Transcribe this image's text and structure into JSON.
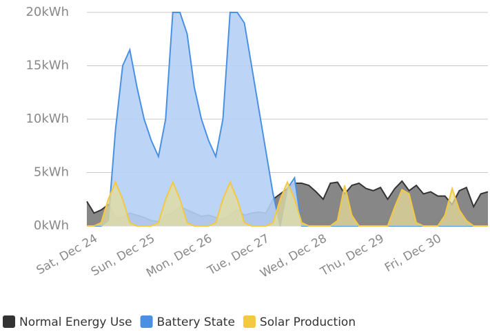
{
  "chart_data": {
    "type": "area",
    "categories": [
      "Sat, Dec 24",
      null,
      null,
      null,
      null,
      null,
      null,
      null,
      "Sun, Dec 25",
      null,
      null,
      null,
      null,
      null,
      null,
      null,
      "Mon, Dec 26",
      null,
      null,
      null,
      null,
      null,
      null,
      null,
      "Tue, Dec 27",
      null,
      null,
      null,
      null,
      null,
      null,
      null,
      "Wed, Dec 28",
      null,
      null,
      null,
      null,
      null,
      null,
      null,
      "Thu, Dec 29",
      null,
      null,
      null,
      null,
      null,
      null,
      null,
      "Fri, Dec 30",
      null,
      null,
      null,
      null,
      null,
      null,
      null,
      null
    ],
    "series": [
      {
        "name": "Normal Energy Use",
        "color": "#333333",
        "fill": "#7a7a7a",
        "values": [
          2.3,
          1.2,
          1.5,
          2,
          0.8,
          0.8,
          1.2,
          1,
          0.8,
          0.5,
          0.4,
          1,
          1.2,
          1.8,
          1.5,
          1.2,
          0.9,
          1,
          0.8,
          0.6,
          1,
          1.5,
          1,
          1.2,
          1.3,
          1.2,
          2.5,
          3,
          3.5,
          4,
          4,
          3.8,
          3.2,
          2.5,
          4,
          4.1,
          3,
          3.8,
          4,
          3.5,
          3.3,
          3.6,
          2.5,
          3.5,
          4.2,
          3.3,
          3.8,
          3,
          3.2,
          2.8,
          2.8,
          2,
          3.3,
          3.6,
          1.8,
          3,
          3.2
        ]
      },
      {
        "name": "Battery State",
        "color": "#4a90e2",
        "fill": "#b5d0f5",
        "values": [
          0,
          0,
          0,
          0.5,
          9,
          15,
          16.5,
          13,
          10,
          8,
          6.5,
          10,
          20,
          20,
          18,
          13,
          10,
          8,
          6.5,
          10,
          20,
          20,
          19,
          15,
          11,
          7,
          3,
          0,
          3.5,
          4.5,
          0,
          0,
          0,
          0,
          0,
          0,
          0,
          0,
          0,
          0,
          0,
          0,
          0,
          0,
          0,
          0,
          0,
          0,
          0,
          0,
          0,
          0,
          0,
          0,
          0,
          0,
          0
        ]
      },
      {
        "name": "Solar Production",
        "color": "#f5c842",
        "fill": "#e6dc9a",
        "values": [
          0,
          0,
          0.3,
          2.5,
          4.1,
          2.5,
          0.3,
          0,
          0,
          0,
          0.3,
          2.5,
          4.1,
          2.5,
          0.3,
          0,
          0,
          0,
          0.3,
          2.5,
          4.1,
          2.5,
          0.3,
          0,
          0,
          0,
          0.3,
          2.5,
          4.1,
          2.5,
          0.3,
          0,
          0,
          0,
          0,
          0.5,
          3.8,
          1,
          0,
          0,
          0,
          0,
          0,
          1.8,
          3.4,
          3,
          0.3,
          0,
          0,
          0,
          1,
          3.5,
          1.5,
          0.5,
          0,
          0,
          0
        ]
      }
    ],
    "ylim": [
      0,
      20
    ],
    "yticks": [
      {
        "value": 0,
        "label": "0kWh"
      },
      {
        "value": 5,
        "label": "5kWh"
      },
      {
        "value": 10,
        "label": "10kWh"
      },
      {
        "value": 15,
        "label": "15kWh"
      },
      {
        "value": 20,
        "label": "20kWh"
      }
    ],
    "grid": true
  }
}
